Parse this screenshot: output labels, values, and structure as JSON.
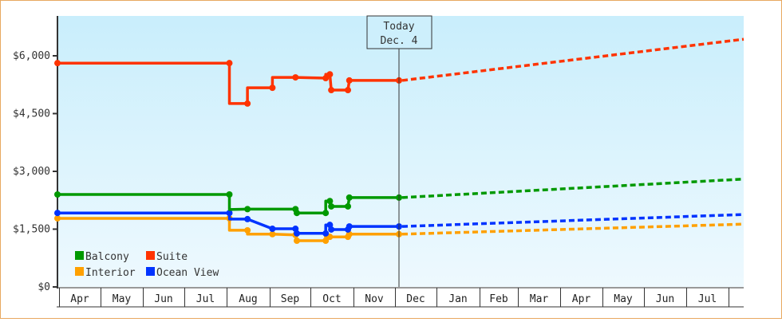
{
  "chart_data": {
    "type": "line",
    "title": "",
    "xlabel": "",
    "ylabel": "",
    "ylim": [
      0,
      7000
    ],
    "y_ticks": [
      "$0",
      "$1,500",
      "$3,000",
      "$4,500",
      "$6,000"
    ],
    "y_tick_values": [
      0,
      1500,
      3000,
      4500,
      6000
    ],
    "x_tick_labels": [
      "Apr",
      "May",
      "Jun",
      "Jul",
      "Aug",
      "Sep",
      "Oct",
      "Nov",
      "Dec",
      "Jan",
      "Feb",
      "Mar",
      "Apr",
      "May",
      "Jun",
      "Jul"
    ],
    "grid": false,
    "legend_position": "bottom-left inside",
    "today_marker": {
      "line1": "Today",
      "line2": "Dec. 4"
    },
    "series": [
      {
        "name": "Balcony",
        "color": "#009900",
        "history": [
          [
            "Apr 1",
            2400
          ],
          [
            "Aug 3",
            2400
          ],
          [
            "Aug 3",
            2010
          ],
          [
            "Aug 16",
            2020
          ],
          [
            "Sep 20",
            2020
          ],
          [
            "Sep 21",
            1920
          ],
          [
            "Oct 12",
            1920
          ],
          [
            "Oct 12",
            2230
          ],
          [
            "Oct 15",
            2230
          ],
          [
            "Oct 16",
            2090
          ],
          [
            "Oct 28",
            2090
          ],
          [
            "Oct 29",
            2320
          ],
          [
            "Dec 4",
            2320
          ]
        ],
        "forecast_end": 2800
      },
      {
        "name": "Suite",
        "color": "#ff3300",
        "history": [
          [
            "Apr 1",
            5810
          ],
          [
            "Aug 3",
            5810
          ],
          [
            "Aug 3",
            4760
          ],
          [
            "Aug 16",
            4760
          ],
          [
            "Aug 16",
            5170
          ],
          [
            "Sep 3",
            5170
          ],
          [
            "Sep 3",
            5440
          ],
          [
            "Sep 20",
            5440
          ],
          [
            "Oct 12",
            5420
          ],
          [
            "Oct 12",
            5520
          ],
          [
            "Oct 15",
            5520
          ],
          [
            "Oct 16",
            5110
          ],
          [
            "Oct 28",
            5110
          ],
          [
            "Oct 29",
            5360
          ],
          [
            "Dec 4",
            5360
          ]
        ],
        "forecast_end": 6430
      },
      {
        "name": "Interior",
        "color": "#ffa000",
        "history": [
          [
            "Apr 1",
            1780
          ],
          [
            "Aug 3",
            1780
          ],
          [
            "Aug 3",
            1470
          ],
          [
            "Aug 16",
            1470
          ],
          [
            "Aug 16",
            1370
          ],
          [
            "Sep 3",
            1370
          ],
          [
            "Sep 20",
            1350
          ],
          [
            "Sep 21",
            1200
          ],
          [
            "Oct 12",
            1200
          ],
          [
            "Oct 13",
            1320
          ],
          [
            "Oct 15",
            1300
          ],
          [
            "Oct 28",
            1300
          ],
          [
            "Oct 29",
            1370
          ],
          [
            "Dec 4",
            1370
          ]
        ],
        "forecast_end": 1630
      },
      {
        "name": "Ocean View",
        "color": "#0033ff",
        "history": [
          [
            "Apr 1",
            1920
          ],
          [
            "Aug 3",
            1920
          ],
          [
            "Aug 3",
            1760
          ],
          [
            "Aug 16",
            1760
          ],
          [
            "Sep 3",
            1510
          ],
          [
            "Sep 20",
            1510
          ],
          [
            "Sep 21",
            1390
          ],
          [
            "Oct 12",
            1390
          ],
          [
            "Oct 12",
            1610
          ],
          [
            "Oct 15",
            1610
          ],
          [
            "Oct 16",
            1490
          ],
          [
            "Oct 28",
            1490
          ],
          [
            "Oct 29",
            1570
          ],
          [
            "Dec 4",
            1570
          ]
        ],
        "forecast_end": 1880
      }
    ]
  },
  "legend": {
    "items": [
      {
        "label": "Balcony",
        "color": "#009900"
      },
      {
        "label": "Suite",
        "color": "#ff3300"
      },
      {
        "label": "Interior",
        "color": "#ffa000"
      },
      {
        "label": "Ocean View",
        "color": "#0033ff"
      }
    ]
  }
}
